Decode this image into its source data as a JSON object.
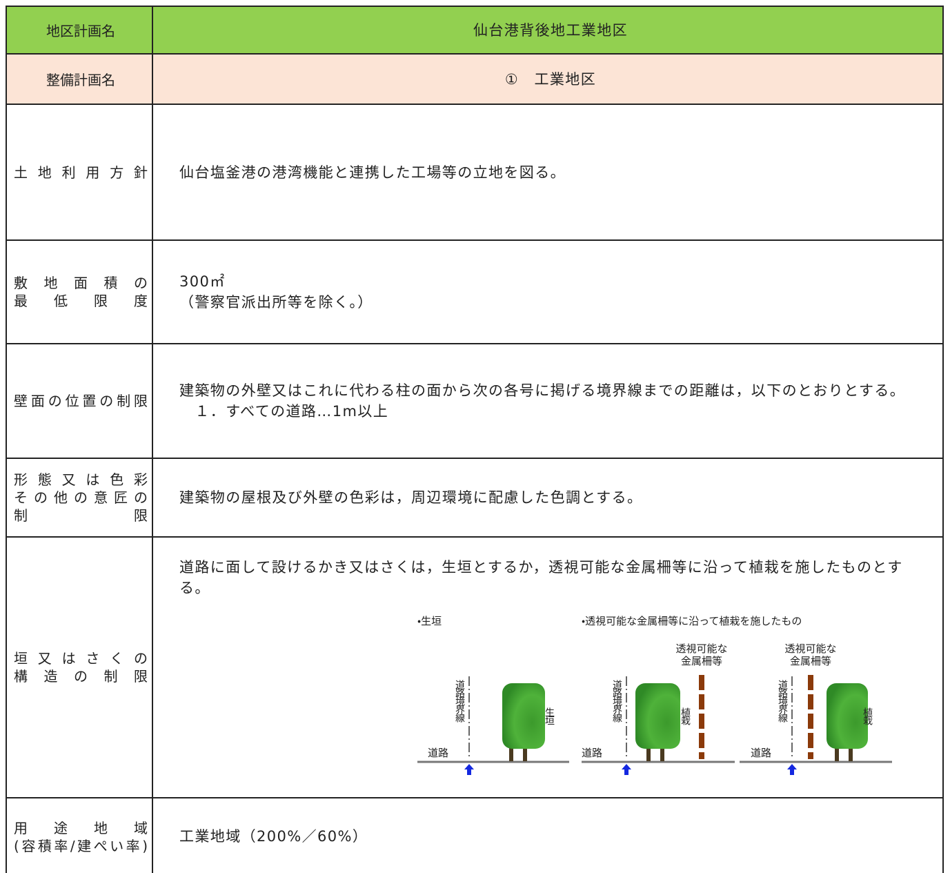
{
  "table": {
    "rows": [
      {
        "label": [
          "地区計画名"
        ],
        "content": [
          "仙台港背後地工業地区"
        ]
      },
      {
        "label": [
          "整備計画名"
        ],
        "content": [
          "①　工業地区"
        ]
      },
      {
        "label": [
          "土地利用方針"
        ],
        "content": [
          "仙台塩釜港の港湾機能と連携した工場等の立地を図る。"
        ]
      },
      {
        "label": [
          "敷地面積の",
          "最低限度"
        ],
        "content": [
          "300㎡",
          "（警察官派出所等を除く。）"
        ]
      },
      {
        "label": [
          "壁面の位置の制限"
        ],
        "content": [
          "建築物の外壁又はこれに代わる柱の面から次の各号に掲げる境界線までの距離は，以下のとおりとする。",
          "　１．すべての道路…1m以上"
        ]
      },
      {
        "label": [
          "形態又は色彩",
          "その他の意匠の",
          "制限"
        ],
        "content": [
          "建築物の屋根及び外壁の色彩は，周辺環境に配慮した色調とする。"
        ]
      },
      {
        "label": [
          "垣又はさくの",
          "構造の制限"
        ],
        "content": [
          "道路に面して設けるかき又はさくは，生垣とするか，透視可能な金属柵等に沿って植栽を施したものとする。"
        ]
      },
      {
        "label": [
          "用途地域",
          "(容積率/建ぺい率)"
        ],
        "content": [
          "工業地域（200%／60%）"
        ]
      }
    ]
  },
  "diagram": {
    "captions": [
      "・生垣",
      "・透視可能な金属柵等に沿って植栽を施したもの"
    ],
    "panels": [
      {
        "boundary": "道路境界線",
        "road": "道路",
        "plant": "生垣"
      },
      {
        "boundary": "道路境界線",
        "road": "道路",
        "plant": "植栽",
        "fence": [
          "透視可能な",
          "金属柵等"
        ]
      },
      {
        "boundary": "道路境界線",
        "road": "道路",
        "plant": "植栽",
        "fence": [
          "透視可能な",
          "金属柵等"
        ]
      }
    ]
  }
}
